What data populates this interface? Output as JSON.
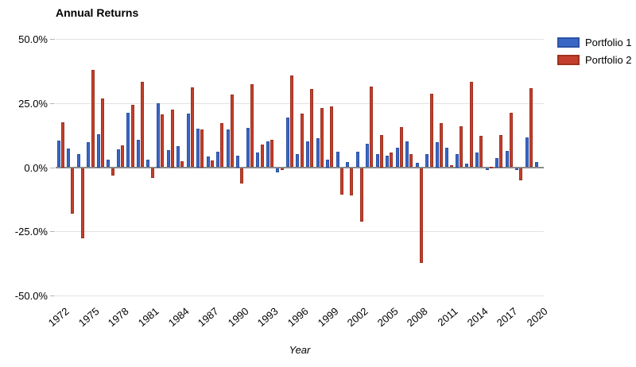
{
  "title": "Annual Returns",
  "legend": {
    "items": [
      {
        "label": "Portfolio 1",
        "color": "#3a66c5"
      },
      {
        "label": "Portfolio 2",
        "color": "#c43f2b"
      }
    ]
  },
  "chart_data": {
    "type": "bar",
    "title": "Annual Returns",
    "xlabel": "Year",
    "ylabel": "",
    "ylim": [
      -50,
      50
    ],
    "grid": "horizontal",
    "legend_position": "top-right",
    "grid_color": "#e2e2e2",
    "zero_line_color": "#8a8a8a",
    "y_tick_labels": [
      "50.0%",
      "25.0%",
      "0.0%",
      "-25.0%",
      "-50.0%"
    ],
    "y_tick_values": [
      50,
      25,
      0,
      -25,
      -50
    ],
    "x_tick_labels": [
      "1972",
      "1975",
      "1978",
      "1981",
      "1984",
      "1987",
      "1990",
      "1993",
      "1996",
      "1999",
      "2002",
      "2005",
      "2008",
      "2011",
      "2014",
      "2017",
      "2020"
    ],
    "categories": [
      1972,
      1973,
      1974,
      1975,
      1976,
      1977,
      1978,
      1979,
      1980,
      1981,
      1982,
      1983,
      1984,
      1985,
      1986,
      1987,
      1988,
      1989,
      1990,
      1991,
      1992,
      1993,
      1994,
      1995,
      1996,
      1997,
      1998,
      1999,
      2000,
      2001,
      2002,
      2003,
      2004,
      2005,
      2006,
      2007,
      2008,
      2009,
      2010,
      2011,
      2012,
      2013,
      2014,
      2015,
      2016,
      2017,
      2018,
      2019,
      2020
    ],
    "series": [
      {
        "name": "Portfolio 1",
        "color": "#3a66c5",
        "values": [
          10.4,
          7.2,
          5.0,
          9.8,
          13.0,
          2.9,
          7.0,
          21.3,
          10.8,
          3.0,
          25.0,
          6.7,
          8.1,
          21.0,
          15.0,
          4.1,
          5.9,
          14.8,
          4.5,
          15.2,
          5.7,
          10.2,
          -1.8,
          19.3,
          5.0,
          10.1,
          11.4,
          3.1,
          6.1,
          1.9,
          6.0,
          9.0,
          5.0,
          4.6,
          7.7,
          10.1,
          1.6,
          5.2,
          9.9,
          7.5,
          5.1,
          1.3,
          5.7,
          -0.7,
          3.7,
          6.3,
          -0.9,
          11.5,
          1.9
        ]
      },
      {
        "name": "Portfolio 2",
        "color": "#c43f2b",
        "values": [
          17.5,
          -17.7,
          -27.3,
          37.9,
          26.9,
          -3.0,
          8.6,
          24.4,
          33.2,
          -3.9,
          20.5,
          22.6,
          2.4,
          31.2,
          14.7,
          2.5,
          17.2,
          28.2,
          -6.1,
          32.4,
          8.8,
          10.6,
          -0.1,
          35.8,
          21.0,
          30.6,
          23.2,
          23.6,
          -10.3,
          -10.8,
          -20.8,
          31.5,
          12.7,
          5.8,
          15.5,
          5.2,
          -36.9,
          28.6,
          17.1,
          0.9,
          16.0,
          33.4,
          12.2,
          0.3,
          12.7,
          21.1,
          -4.7,
          30.7,
          0.0
        ]
      }
    ]
  }
}
